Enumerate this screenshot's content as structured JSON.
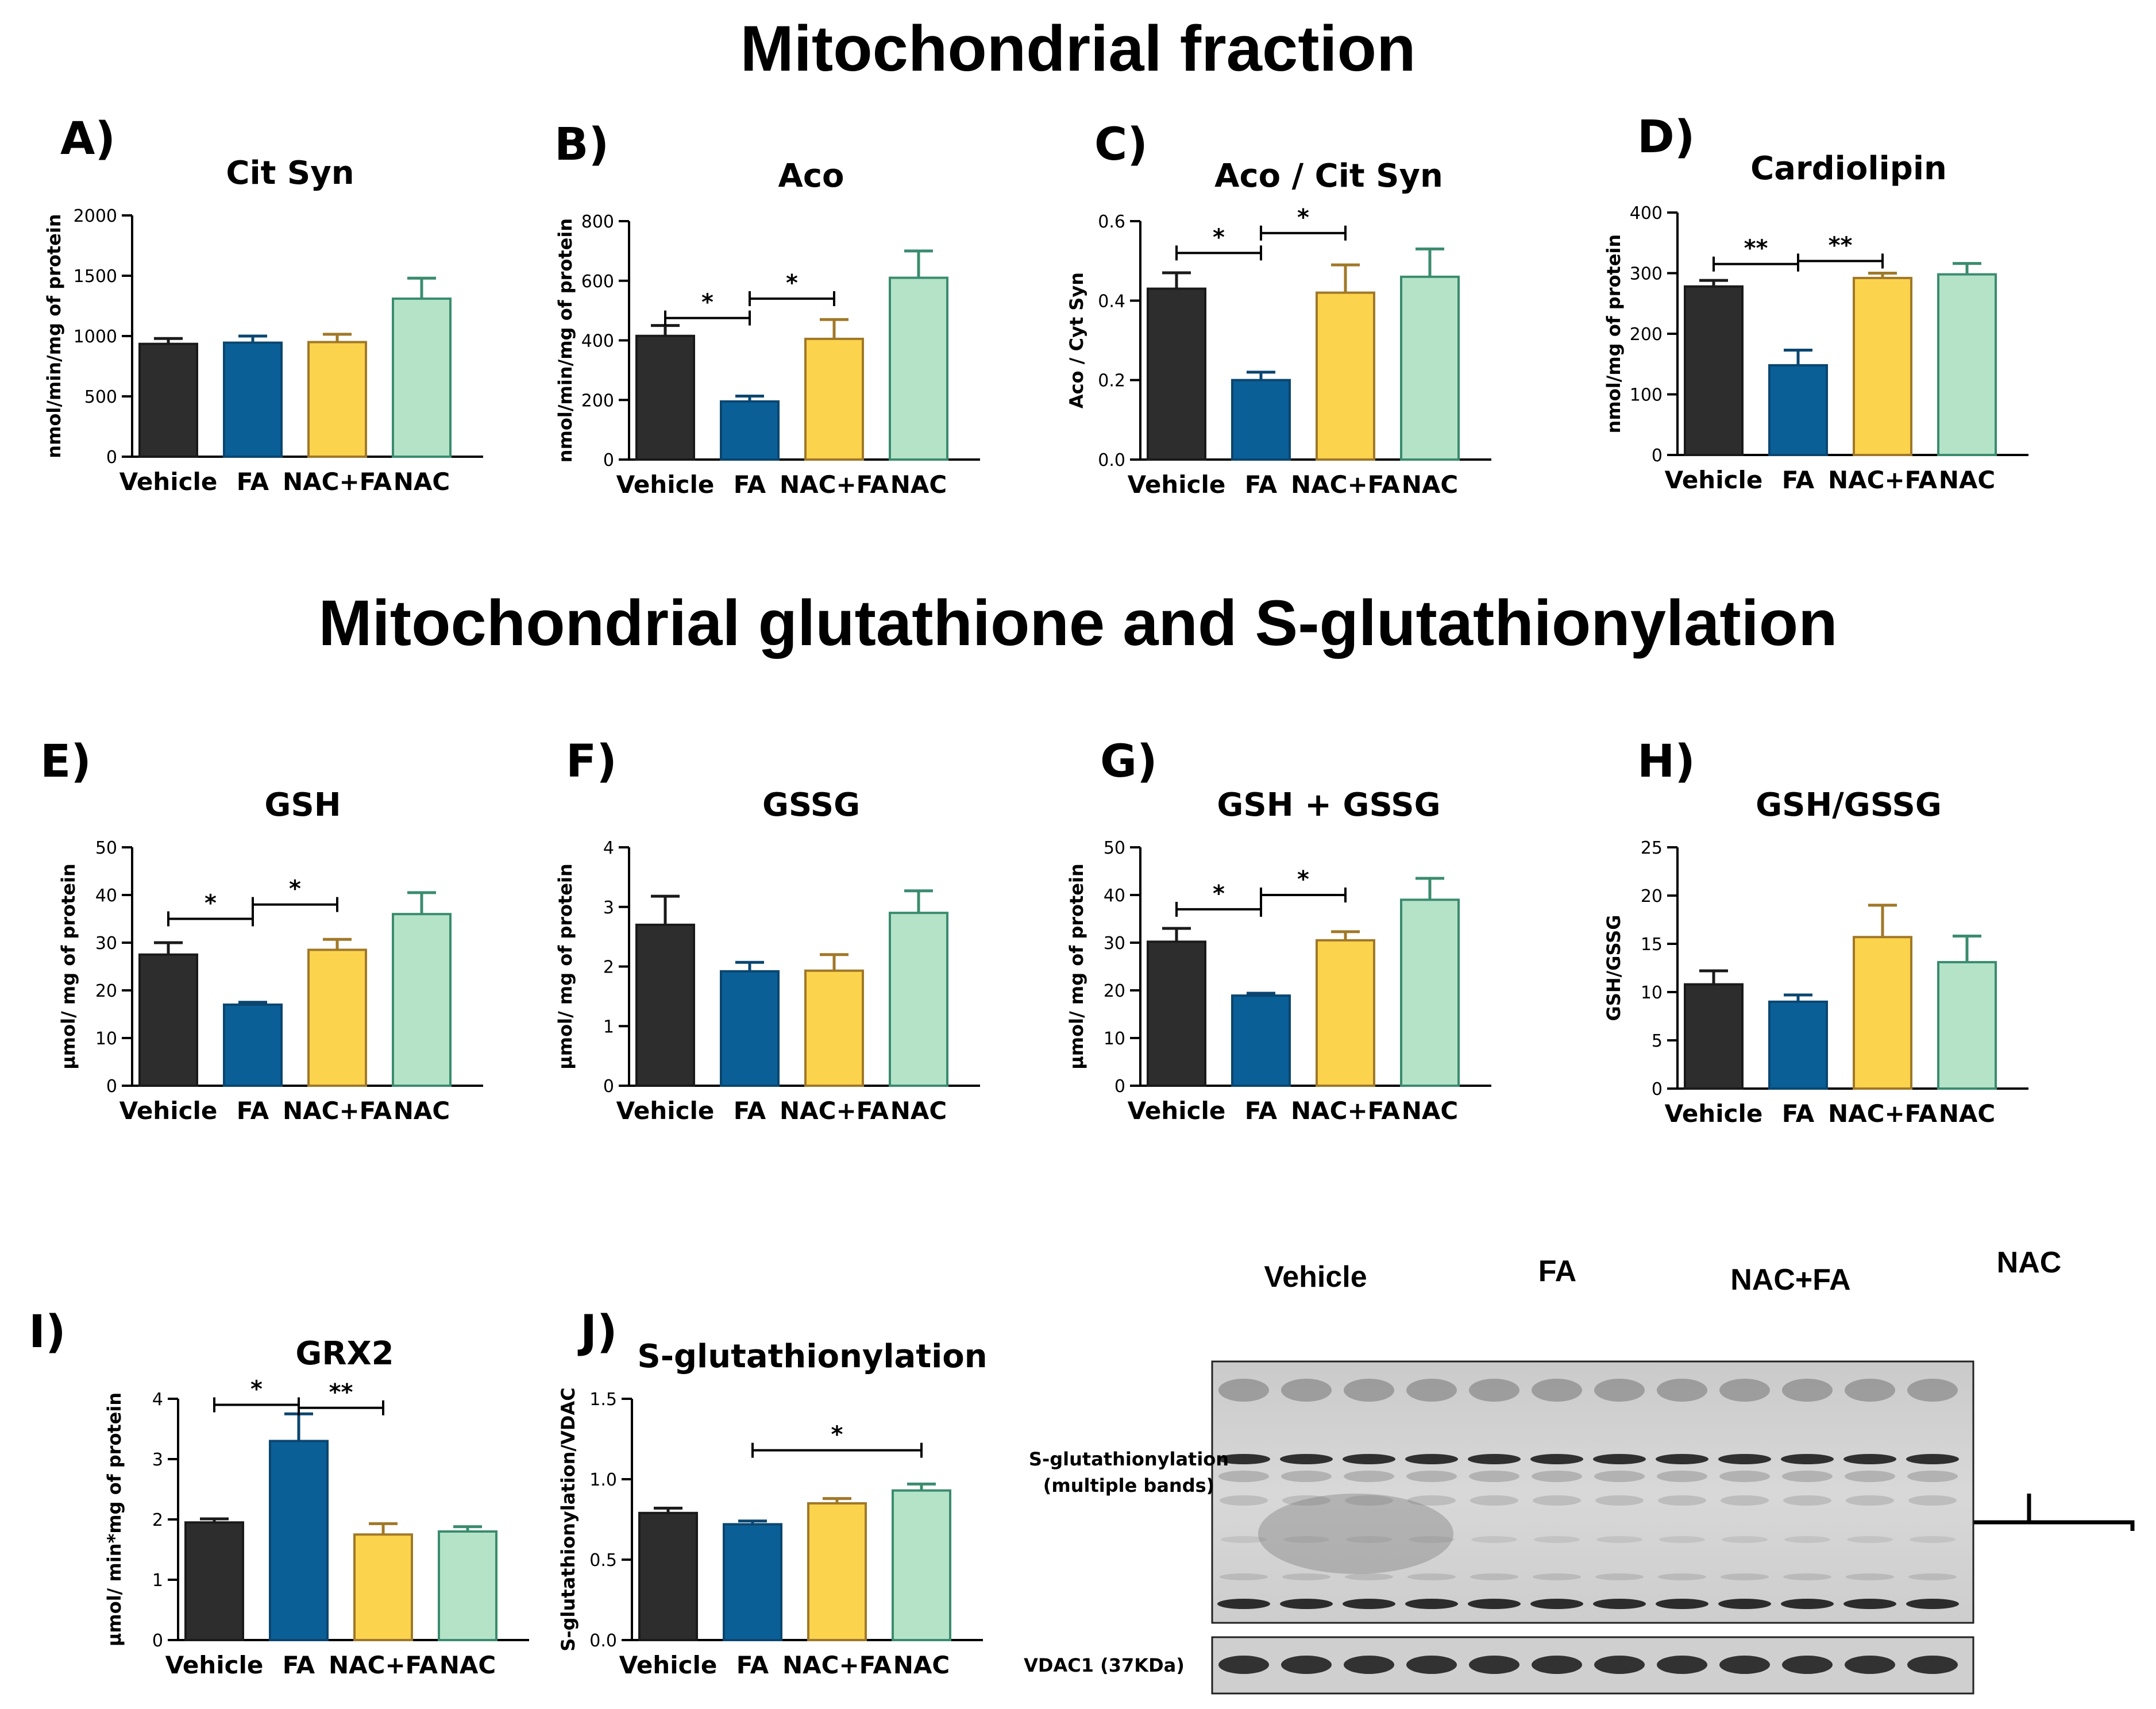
{
  "section_titles": {
    "mito": "Mitochondrial fraction",
    "glut": "Mitochondrial glutathione and S-glutathionylation"
  },
  "colors": {
    "Vehicle": {
      "fill": "#2d2d2d",
      "edge": "#1a1a1a"
    },
    "FA": {
      "fill": "#0a5f96",
      "edge": "#0a4670"
    },
    "NAC+FA": {
      "fill": "#fcd34d",
      "edge": "#a07828"
    },
    "NAC": {
      "fill": "#b5e3c8",
      "edge": "#3a8c6e"
    }
  },
  "blot": {
    "group_labels": [
      "Vehicle",
      "FA",
      "NAC+FA",
      "NAC"
    ],
    "band_label_line1": "S-glutathionylation",
    "band_label_line2": "(multiple bands)",
    "loading_label": "VDAC1 (37KDa)"
  },
  "chart_data": [
    {
      "panel": "A)",
      "type": "bar",
      "title": "Cit Syn",
      "ylabel": "nmol/min/mg of protein",
      "categories": [
        "Vehicle",
        "FA",
        "NAC+FA",
        "NAC"
      ],
      "values": [
        935,
        945,
        950,
        1310
      ],
      "errors": [
        45,
        55,
        65,
        170
      ],
      "ylim": [
        0,
        2000
      ],
      "yticks": [
        0,
        500,
        1000,
        1500,
        2000
      ],
      "yticklabels": [
        "0",
        "500",
        "1000",
        "1500",
        "2000"
      ],
      "sig": []
    },
    {
      "panel": "B)",
      "type": "bar",
      "title": "Aco",
      "ylabel": "nmol/min/mg of protein",
      "categories": [
        "Vehicle",
        "FA",
        "NAC+FA",
        "NAC"
      ],
      "values": [
        415,
        195,
        405,
        610
      ],
      "errors": [
        35,
        18,
        65,
        90
      ],
      "ylim": [
        0,
        800
      ],
      "yticks": [
        0,
        200,
        400,
        600,
        800
      ],
      "yticklabels": [
        "0",
        "200",
        "400",
        "600",
        "800"
      ],
      "sig": [
        {
          "from": 0,
          "to": 1,
          "y": 475,
          "label": "*"
        },
        {
          "from": 1,
          "to": 2,
          "y": 540,
          "label": "*"
        }
      ]
    },
    {
      "panel": "C)",
      "type": "bar",
      "title": "Aco / Cit Syn",
      "ylabel": "Aco / Cyt Syn",
      "categories": [
        "Vehicle",
        "FA",
        "NAC+FA",
        "NAC"
      ],
      "values": [
        0.43,
        0.2,
        0.42,
        0.46
      ],
      "errors": [
        0.04,
        0.02,
        0.07,
        0.07
      ],
      "ylim": [
        0,
        0.6
      ],
      "yticks": [
        0,
        0.2,
        0.4,
        0.6
      ],
      "yticklabels": [
        "0.0",
        "0.2",
        "0.4",
        "0.6"
      ],
      "sig": [
        {
          "from": 0,
          "to": 1,
          "y": 0.52,
          "label": "*"
        },
        {
          "from": 1,
          "to": 2,
          "y": 0.57,
          "label": "*"
        }
      ]
    },
    {
      "panel": "D)",
      "type": "bar",
      "title": "Cardiolipin",
      "ylabel": "nmol/mg of protein",
      "categories": [
        "Vehicle",
        "FA",
        "NAC+FA",
        "NAC"
      ],
      "values": [
        278,
        148,
        292,
        298
      ],
      "errors": [
        10,
        25,
        8,
        18
      ],
      "ylim": [
        0,
        400
      ],
      "yticks": [
        0,
        100,
        200,
        300,
        400
      ],
      "yticklabels": [
        "0",
        "100",
        "200",
        "300",
        "400"
      ],
      "sig": [
        {
          "from": 0,
          "to": 1,
          "y": 315,
          "label": "**"
        },
        {
          "from": 1,
          "to": 2,
          "y": 320,
          "label": "**"
        }
      ]
    },
    {
      "panel": "E)",
      "type": "bar",
      "title": "GSH",
      "ylabel": "μmol/ mg of protein",
      "categories": [
        "Vehicle",
        "FA",
        "NAC+FA",
        "NAC"
      ],
      "values": [
        27.5,
        17,
        28.5,
        36
      ],
      "errors": [
        2.5,
        0.5,
        2.2,
        4.5
      ],
      "ylim": [
        0,
        50
      ],
      "yticks": [
        0,
        10,
        20,
        30,
        40,
        50
      ],
      "yticklabels": [
        "0",
        "10",
        "20",
        "30",
        "40",
        "50"
      ],
      "sig": [
        {
          "from": 0,
          "to": 1,
          "y": 35,
          "label": "*"
        },
        {
          "from": 1,
          "to": 2,
          "y": 38,
          "label": "*"
        }
      ]
    },
    {
      "panel": "F)",
      "type": "bar",
      "title": "GSSG",
      "ylabel": "μmol/ mg of protein",
      "categories": [
        "Vehicle",
        "FA",
        "NAC+FA",
        "NAC"
      ],
      "values": [
        2.7,
        1.92,
        1.93,
        2.9
      ],
      "errors": [
        0.48,
        0.15,
        0.27,
        0.37
      ],
      "ylim": [
        0,
        4
      ],
      "yticks": [
        0,
        1,
        2,
        3,
        4
      ],
      "yticklabels": [
        "0",
        "1",
        "2",
        "3",
        "4"
      ],
      "sig": []
    },
    {
      "panel": "G)",
      "type": "bar",
      "title": "GSH + GSSG",
      "ylabel": "μmol/ mg of protein",
      "categories": [
        "Vehicle",
        "FA",
        "NAC+FA",
        "NAC"
      ],
      "values": [
        30.2,
        18.9,
        30.5,
        39
      ],
      "errors": [
        2.8,
        0.5,
        1.8,
        4.5
      ],
      "ylim": [
        0,
        50
      ],
      "yticks": [
        0,
        10,
        20,
        30,
        40,
        50
      ],
      "yticklabels": [
        "0",
        "10",
        "20",
        "30",
        "40",
        "50"
      ],
      "sig": [
        {
          "from": 0,
          "to": 1,
          "y": 37,
          "label": "*"
        },
        {
          "from": 1,
          "to": 2,
          "y": 40,
          "label": "*"
        }
      ]
    },
    {
      "panel": "H)",
      "type": "bar",
      "title": "GSH/GSSG",
      "ylabel": "GSH/GSSG",
      "categories": [
        "Vehicle",
        "FA",
        "NAC+FA",
        "NAC"
      ],
      "values": [
        10.8,
        9,
        15.7,
        13.1
      ],
      "errors": [
        1.4,
        0.7,
        3.3,
        2.7
      ],
      "ylim": [
        0,
        25
      ],
      "yticks": [
        0,
        5,
        10,
        15,
        20,
        25
      ],
      "yticklabels": [
        "0",
        "5",
        "10",
        "15",
        "20",
        "25"
      ],
      "sig": []
    },
    {
      "panel": "I)",
      "type": "bar",
      "title": "GRX2",
      "ylabel": "μmol/ min*mg of protein",
      "categories": [
        "Vehicle",
        "FA",
        "NAC+FA",
        "NAC"
      ],
      "values": [
        1.95,
        3.3,
        1.75,
        1.8
      ],
      "errors": [
        0.06,
        0.45,
        0.18,
        0.08
      ],
      "ylim": [
        0,
        4
      ],
      "yticks": [
        0,
        1,
        2,
        3,
        4
      ],
      "yticklabels": [
        "0",
        "1",
        "2",
        "3",
        "4"
      ],
      "sig": [
        {
          "from": 0,
          "to": 1,
          "y": 3.9,
          "label": "*"
        },
        {
          "from": 1,
          "to": 2,
          "y": 3.85,
          "label": "**"
        }
      ]
    },
    {
      "panel": "J)",
      "type": "bar",
      "title": "S-glutathionylation",
      "ylabel": "S-glutathionylation/VDAC",
      "categories": [
        "Vehicle",
        "FA",
        "NAC+FA",
        "NAC"
      ],
      "values": [
        0.79,
        0.72,
        0.85,
        0.93
      ],
      "errors": [
        0.03,
        0.02,
        0.03,
        0.04
      ],
      "ylim": [
        0,
        1.5
      ],
      "yticks": [
        0,
        0.5,
        1,
        1.5
      ],
      "yticklabels": [
        "0.0",
        "0.5",
        "1.0",
        "1.5"
      ],
      "sig": [
        {
          "from": 1,
          "to": 3,
          "y": 1.18,
          "label": "*"
        }
      ]
    }
  ]
}
